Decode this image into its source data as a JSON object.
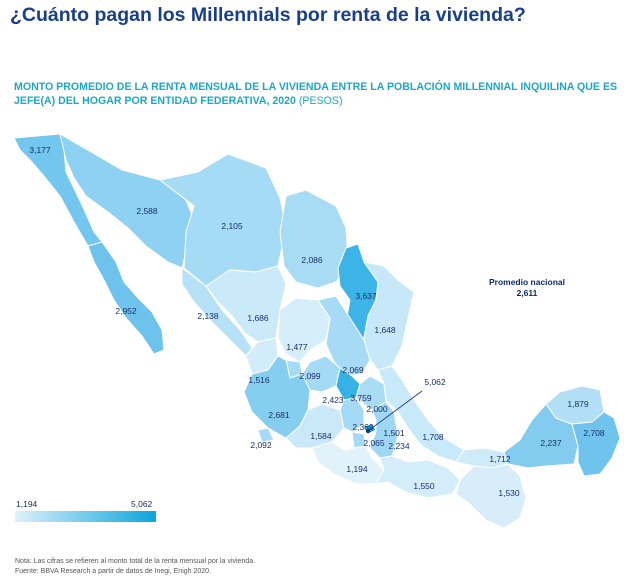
{
  "title": "¿Cuánto pagan los Millennials por renta de la vivienda?",
  "subtitle": {
    "text": "MONTO PROMEDIO DE LA RENTA MENSUAL DE LA VIVIENDA ENTRE LA POBLACIÓN MILLENNIAL INQUILINA QUE ES JEFE(A) DEL HOGAR POR ENTIDAD FEDERATIVA, 2020",
    "unit": "(PESOS)"
  },
  "national_average": {
    "label": "Promedio nacional",
    "value": "2,611"
  },
  "legend": {
    "min": "1,194",
    "max": "5,062",
    "color_low": "#dff0fb",
    "color_high": "#0aa5dc"
  },
  "value_labels": [
    "3,177",
    "2,588",
    "2,105",
    "2,952",
    "2,086",
    "3,637",
    "2,138",
    "1,686",
    "1,648",
    "1,477",
    "1,516",
    "2,099",
    "2,069",
    "5,062",
    "3,759",
    "2,423",
    "2,000",
    "2,681",
    "2,369",
    "1,501",
    "2,092",
    "1,584",
    "2,065",
    "2,234",
    "1,708",
    "1,879",
    "2,708",
    "2,237",
    "1,712",
    "1,194",
    "1,550",
    "1,530"
  ],
  "footnotes": {
    "note": "Nota: Las cifras se refieren al monto total de la renta mensual por la vivienda.",
    "source": "Fuente: BBVA Research a partir de datos de Inegi, Enigh 2020."
  }
}
